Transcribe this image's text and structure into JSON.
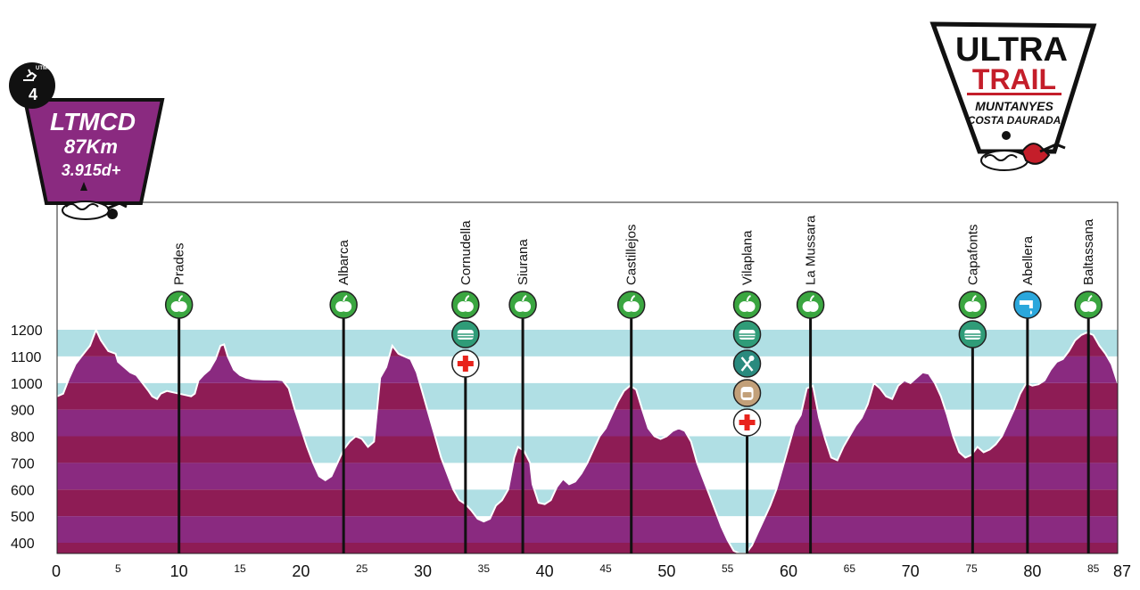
{
  "chart_data": {
    "type": "area",
    "xlim": [
      0,
      87
    ],
    "ylim": [
      355,
      1220
    ],
    "x_ticks_major": [
      0,
      10,
      20,
      30,
      40,
      50,
      60,
      70,
      80,
      87
    ],
    "x_ticks_minor": [
      5,
      15,
      25,
      35,
      45,
      55,
      65,
      75,
      85
    ],
    "y_ticks": [
      400,
      500,
      600,
      700,
      800,
      900,
      1000,
      1100,
      1200
    ],
    "profile": [
      [
        0,
        950
      ],
      [
        0.5,
        960
      ],
      [
        1,
        1020
      ],
      [
        1.5,
        1070
      ],
      [
        2,
        1100
      ],
      [
        2.7,
        1140
      ],
      [
        3.2,
        1200
      ],
      [
        3.6,
        1160
      ],
      [
        4.2,
        1120
      ],
      [
        4.8,
        1110
      ],
      [
        5,
        1080
      ],
      [
        6,
        1040
      ],
      [
        6.5,
        1030
      ],
      [
        7,
        1000
      ],
      [
        7.5,
        970
      ],
      [
        7.8,
        950
      ],
      [
        8.2,
        940
      ],
      [
        8.5,
        960
      ],
      [
        9,
        970
      ],
      [
        9.5,
        965
      ],
      [
        10,
        960
      ],
      [
        10.5,
        955
      ],
      [
        11,
        950
      ],
      [
        11.3,
        960
      ],
      [
        11.6,
        1010
      ],
      [
        12,
        1030
      ],
      [
        12.5,
        1050
      ],
      [
        13,
        1090
      ],
      [
        13.4,
        1140
      ],
      [
        13.7,
        1145
      ],
      [
        14,
        1100
      ],
      [
        14.5,
        1050
      ],
      [
        15,
        1030
      ],
      [
        15.5,
        1020
      ],
      [
        16,
        1015
      ],
      [
        17,
        1013
      ],
      [
        18,
        1013
      ],
      [
        18.5,
        1010
      ],
      [
        19,
        980
      ],
      [
        19.5,
        900
      ],
      [
        20,
        830
      ],
      [
        20.5,
        760
      ],
      [
        21,
        700
      ],
      [
        21.5,
        650
      ],
      [
        22,
        635
      ],
      [
        22.5,
        650
      ],
      [
        23,
        700
      ],
      [
        23.5,
        750
      ],
      [
        24,
        780
      ],
      [
        24.5,
        800
      ],
      [
        25,
        790
      ],
      [
        25.5,
        760
      ],
      [
        26,
        780
      ],
      [
        26.5,
        1020
      ],
      [
        27,
        1060
      ],
      [
        27.5,
        1140
      ],
      [
        28,
        1110
      ],
      [
        28.5,
        1100
      ],
      [
        29,
        1090
      ],
      [
        29.5,
        1040
      ],
      [
        30,
        960
      ],
      [
        30.5,
        880
      ],
      [
        31,
        800
      ],
      [
        31.5,
        720
      ],
      [
        32,
        660
      ],
      [
        32.5,
        600
      ],
      [
        33,
        560
      ],
      [
        33.5,
        545
      ],
      [
        34,
        520
      ],
      [
        34.5,
        490
      ],
      [
        35,
        480
      ],
      [
        35.5,
        490
      ],
      [
        36,
        540
      ],
      [
        36.5,
        560
      ],
      [
        37,
        600
      ],
      [
        37.5,
        720
      ],
      [
        37.8,
        760
      ],
      [
        38.3,
        745
      ],
      [
        38.8,
        700
      ],
      [
        39,
        620
      ],
      [
        39.5,
        550
      ],
      [
        40,
        545
      ],
      [
        40.5,
        560
      ],
      [
        41,
        610
      ],
      [
        41.5,
        640
      ],
      [
        42,
        620
      ],
      [
        42.5,
        630
      ],
      [
        43,
        660
      ],
      [
        43.5,
        700
      ],
      [
        44,
        750
      ],
      [
        44.5,
        800
      ],
      [
        45,
        830
      ],
      [
        45.5,
        880
      ],
      [
        46,
        930
      ],
      [
        46.5,
        970
      ],
      [
        47,
        990
      ],
      [
        47.5,
        975
      ],
      [
        48,
        900
      ],
      [
        48.5,
        830
      ],
      [
        49,
        800
      ],
      [
        49.5,
        790
      ],
      [
        50,
        800
      ],
      [
        50.5,
        820
      ],
      [
        51,
        830
      ],
      [
        51.5,
        820
      ],
      [
        52,
        780
      ],
      [
        52.5,
        700
      ],
      [
        53,
        640
      ],
      [
        53.5,
        580
      ],
      [
        54,
        520
      ],
      [
        54.5,
        460
      ],
      [
        55,
        410
      ],
      [
        55.5,
        370
      ],
      [
        56,
        360
      ],
      [
        56.5,
        360
      ],
      [
        57,
        390
      ],
      [
        57.5,
        440
      ],
      [
        58,
        490
      ],
      [
        58.5,
        540
      ],
      [
        59,
        600
      ],
      [
        59.5,
        680
      ],
      [
        60,
        760
      ],
      [
        60.5,
        840
      ],
      [
        61,
        880
      ],
      [
        61.5,
        980
      ],
      [
        62,
        990
      ],
      [
        62.5,
        870
      ],
      [
        63,
        790
      ],
      [
        63.5,
        720
      ],
      [
        64,
        710
      ],
      [
        64.5,
        760
      ],
      [
        65,
        800
      ],
      [
        65.5,
        840
      ],
      [
        66,
        870
      ],
      [
        66.5,
        920
      ],
      [
        67,
        1000
      ],
      [
        67.5,
        980
      ],
      [
        68,
        950
      ],
      [
        68.5,
        940
      ],
      [
        69,
        990
      ],
      [
        69.5,
        1010
      ],
      [
        70,
        1000
      ],
      [
        70.5,
        1020
      ],
      [
        71,
        1040
      ],
      [
        71.5,
        1035
      ],
      [
        72,
        1000
      ],
      [
        72.5,
        950
      ],
      [
        73,
        880
      ],
      [
        73.5,
        800
      ],
      [
        74,
        740
      ],
      [
        74.5,
        720
      ],
      [
        75,
        730
      ],
      [
        75.5,
        760
      ],
      [
        76,
        740
      ],
      [
        76.5,
        750
      ],
      [
        77,
        770
      ],
      [
        77.5,
        800
      ],
      [
        78,
        850
      ],
      [
        78.5,
        900
      ],
      [
        79,
        960
      ],
      [
        79.5,
        1000
      ],
      [
        80,
        990
      ],
      [
        80.5,
        995
      ],
      [
        81,
        1010
      ],
      [
        81.5,
        1050
      ],
      [
        82,
        1080
      ],
      [
        82.5,
        1090
      ],
      [
        83,
        1120
      ],
      [
        83.5,
        1160
      ],
      [
        84,
        1180
      ],
      [
        84.5,
        1190
      ],
      [
        85,
        1180
      ],
      [
        85.5,
        1140
      ],
      [
        86,
        1110
      ],
      [
        86.5,
        1070
      ],
      [
        87,
        1000
      ]
    ],
    "waypoints": [
      {
        "name": "Prades",
        "km": 10,
        "services": [
          "apple"
        ]
      },
      {
        "name": "Albarca",
        "km": 23.5,
        "services": [
          "apple"
        ]
      },
      {
        "name": "Cornudella",
        "km": 33.5,
        "services": [
          "apple",
          "bag",
          "medical"
        ]
      },
      {
        "name": "Siurana",
        "km": 38.2,
        "services": [
          "apple"
        ]
      },
      {
        "name": "Castillejos",
        "km": 47.1,
        "services": [
          "apple"
        ]
      },
      {
        "name": "Vilaplana",
        "km": 56.6,
        "services": [
          "apple",
          "bag",
          "food",
          "backpack",
          "medical"
        ]
      },
      {
        "name": "La Mussara",
        "km": 61.8,
        "services": [
          "apple"
        ]
      },
      {
        "name": "Capafonts",
        "km": 75.1,
        "services": [
          "apple",
          "bag"
        ]
      },
      {
        "name": "Abellera",
        "km": 79.6,
        "services": [
          "water"
        ]
      },
      {
        "name": "Baltassana",
        "km": 84.6,
        "services": [
          "apple"
        ]
      }
    ],
    "colors": {
      "band_light": "#b0dfe4",
      "band_white": "#ffffff",
      "fill_even": "#8a2a80",
      "fill_odd": "#8e1c55",
      "apple": "#3aa640",
      "bag": "#2f9c78",
      "food": "#2a8a7e",
      "backpack": "#c2a079",
      "water": "#2aa7dc",
      "medical_cross": "#e8231c"
    }
  },
  "badge": {
    "code": "LTMCD",
    "distance": "87Km",
    "elevation": "3.915d+",
    "number": "4",
    "small_text": "UTMCD",
    "color": "#8a2a80"
  },
  "logo": {
    "line1": "ULTRA",
    "line2": "TRAIL",
    "line3": "MUNTANYES",
    "line4": "COSTA DAURADA",
    "accent": "#c41e2a"
  }
}
